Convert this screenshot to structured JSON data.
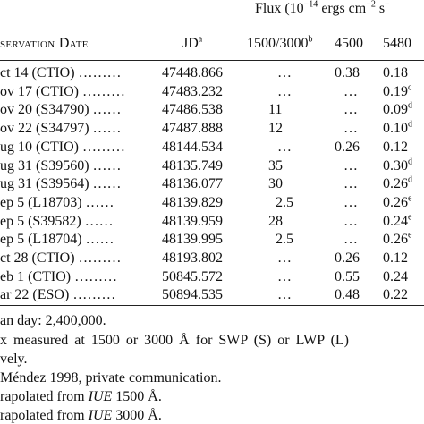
{
  "header": {
    "flux_label": "Flux (10",
    "flux_exp1": "−14",
    "flux_units": "ergs cm",
    "flux_exp2": "−2",
    "flux_units2": "s",
    "flux_exp3": "−",
    "col_date": "servation Date",
    "col_jd": "JD",
    "col_jd_note": "a",
    "col_1500": "1500/3000",
    "col_1500_note": "b",
    "col_4500": "4500",
    "col_5480": "5480"
  },
  "rows": [
    {
      "date": "ct 14 (CTIO) ………",
      "jd": "47448.866",
      "f1500": "…",
      "f1500_note": "",
      "f4500": "0.38",
      "f5480": "0.18",
      "f5480_note": ""
    },
    {
      "date": "ov 17 (CTIO) ………",
      "jd": "47483.232",
      "f1500": "…",
      "f1500_note": "",
      "f4500": "…",
      "f5480": "0.19",
      "f5480_note": "c"
    },
    {
      "date": "ov 20 (S34790) ……",
      "jd": "47486.538",
      "f1500": "11",
      "f1500_note": "",
      "f4500": "…",
      "f5480": "0.09",
      "f5480_note": "d"
    },
    {
      "date": "ov 22 (S34797) ……",
      "jd": "47487.888",
      "f1500": "12",
      "f1500_note": "",
      "f4500": "…",
      "f5480": "0.10",
      "f5480_note": "d"
    },
    {
      "date": "ug 10 (CTIO) ………",
      "jd": "48144.534",
      "f1500": "…",
      "f1500_note": "",
      "f4500": "0.26",
      "f5480": "0.12",
      "f5480_note": ""
    },
    {
      "date": "ug 31 (S39560) ……",
      "jd": "48135.749",
      "f1500": "35",
      "f1500_note": "",
      "f4500": "…",
      "f5480": "0.30",
      "f5480_note": "d"
    },
    {
      "date": "ug 31 (S39564) ……",
      "jd": "48136.077",
      "f1500": "30",
      "f1500_note": "",
      "f4500": "…",
      "f5480": "0.26",
      "f5480_note": "d"
    },
    {
      "date": "ep 5 (L18703) ……",
      "jd": "48139.829",
      "f1500": "2.5",
      "f1500_note": "",
      "f4500": "…",
      "f5480": "0.26",
      "f5480_note": "e"
    },
    {
      "date": "ep 5 (S39582) ……",
      "jd": "48139.959",
      "f1500": "28",
      "f1500_note": "",
      "f4500": "…",
      "f5480": "0.24",
      "f5480_note": "e"
    },
    {
      "date": "ep 5 (L18704) ……",
      "jd": "48139.995",
      "f1500": "2.5",
      "f1500_note": "",
      "f4500": "…",
      "f5480": "0.26",
      "f5480_note": "e"
    },
    {
      "date": "ct 28 (CTIO) ………",
      "jd": "48193.802",
      "f1500": "…",
      "f1500_note": "",
      "f4500": "0.26",
      "f5480": "0.12",
      "f5480_note": ""
    },
    {
      "date": "eb 1 (CTIO) ………",
      "jd": "50845.572",
      "f1500": "…",
      "f1500_note": "",
      "f4500": "0.55",
      "f5480": "0.24",
      "f5480_note": ""
    },
    {
      "date": "ar 22 (ESO) ………",
      "jd": "50894.535",
      "f1500": "…",
      "f1500_note": "",
      "f4500": "0.48",
      "f5480": "0.22",
      "f5480_note": ""
    }
  ],
  "footnotes": [
    "an day: 2,400,000.",
    "x measured at 1500 or 3000 Å for SWP (S) or LWP (L)",
    "vely.",
    "Méndez 1998, private communication.",
    "rapolated from IUE 1500 Å.",
    "rapolated from IUE 3000 Å."
  ]
}
